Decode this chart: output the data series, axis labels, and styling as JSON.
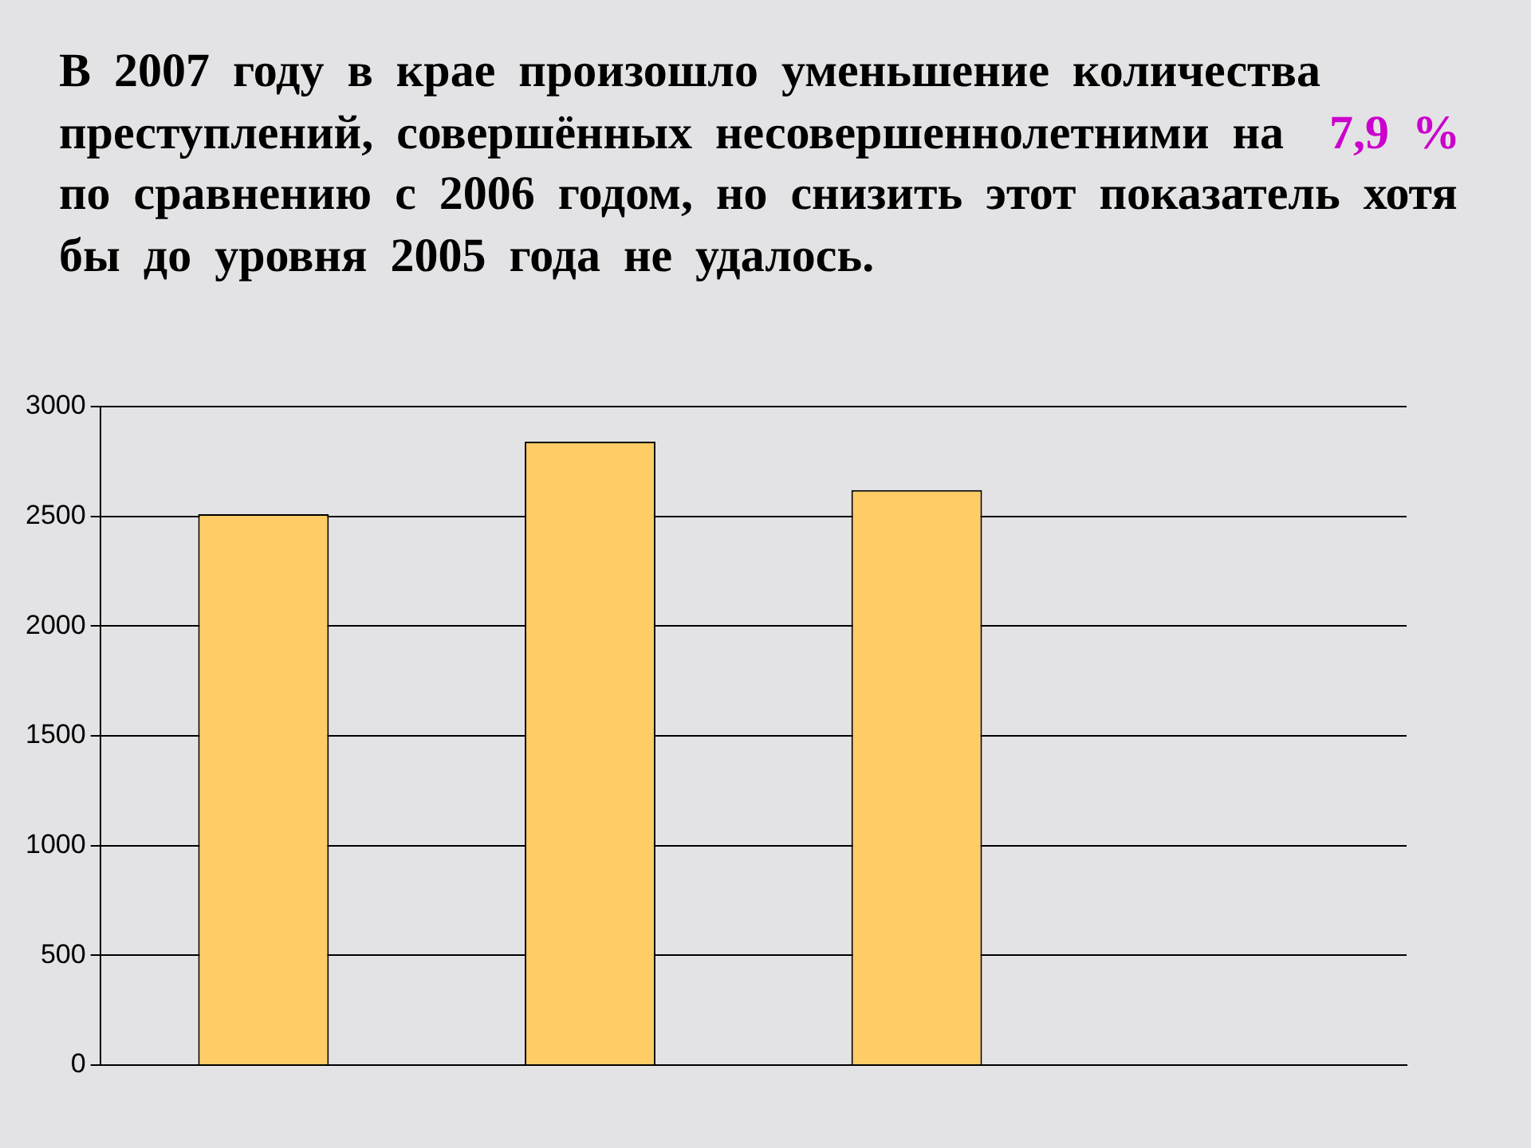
{
  "chart_data": {
    "type": "bar",
    "title": "В 2007 году в крае произошло уменьшение количества преступлений, совершённых несовершеннолетними на 7,9 % по сравнению с 2006 годом, но снизить этот показатель хотя бы до уровня 2005 года не удалось.",
    "categories": [
      null,
      null,
      null,
      null
    ],
    "values": [
      2510,
      2840,
      2620,
      null
    ],
    "color": "#ffcc66",
    "ylim": [
      0,
      3000
    ],
    "yticks": [
      0,
      500,
      1000,
      1500,
      2000,
      2500,
      3000
    ],
    "grid": "y",
    "tick_labels": "y"
  }
}
